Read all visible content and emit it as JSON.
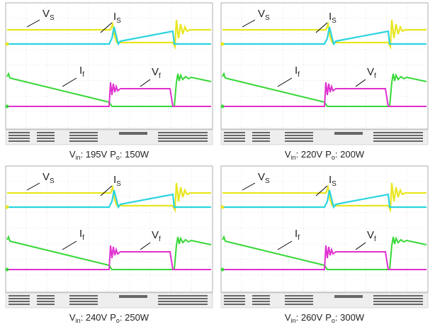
{
  "panels": [
    {
      "labels": [
        {
          "main": "V",
          "sub": "S"
        },
        {
          "main": "I",
          "sub": "S"
        },
        {
          "main": "I",
          "sub": "f"
        },
        {
          "main": "V",
          "sub": "f"
        }
      ],
      "caption": {
        "vin_symbol": "V",
        "vin_sub": "in",
        "vin_value": ": 195V",
        "po_symbol": "P",
        "po_sub": "o",
        "po_value": ": 150W"
      }
    },
    {
      "labels": [
        {
          "main": "V",
          "sub": "S"
        },
        {
          "main": "I",
          "sub": "S"
        },
        {
          "main": "I",
          "sub": "f"
        },
        {
          "main": "V",
          "sub": "f"
        }
      ],
      "caption": {
        "vin_symbol": "V",
        "vin_sub": "in",
        "vin_value": ": 220V",
        "po_symbol": "P",
        "po_sub": "o",
        "po_value": ": 200W"
      }
    },
    {
      "labels": [
        {
          "main": "V",
          "sub": "S"
        },
        {
          "main": "I",
          "sub": "S"
        },
        {
          "main": "I",
          "sub": "f"
        },
        {
          "main": "V",
          "sub": "f"
        }
      ],
      "caption": {
        "vin_symbol": "V",
        "vin_sub": "in",
        "vin_value": ": 240V",
        "po_symbol": "P",
        "po_sub": "o",
        "po_value": ": 250W"
      }
    },
    {
      "labels": [
        {
          "main": "V",
          "sub": "S"
        },
        {
          "main": "I",
          "sub": "S"
        },
        {
          "main": "I",
          "sub": "f"
        },
        {
          "main": "V",
          "sub": "f"
        }
      ],
      "caption": {
        "vin_symbol": "V",
        "vin_sub": "in",
        "vin_value": ": 260V",
        "po_symbol": "P",
        "po_sub": "o",
        "po_value": ": 300W"
      }
    }
  ]
}
